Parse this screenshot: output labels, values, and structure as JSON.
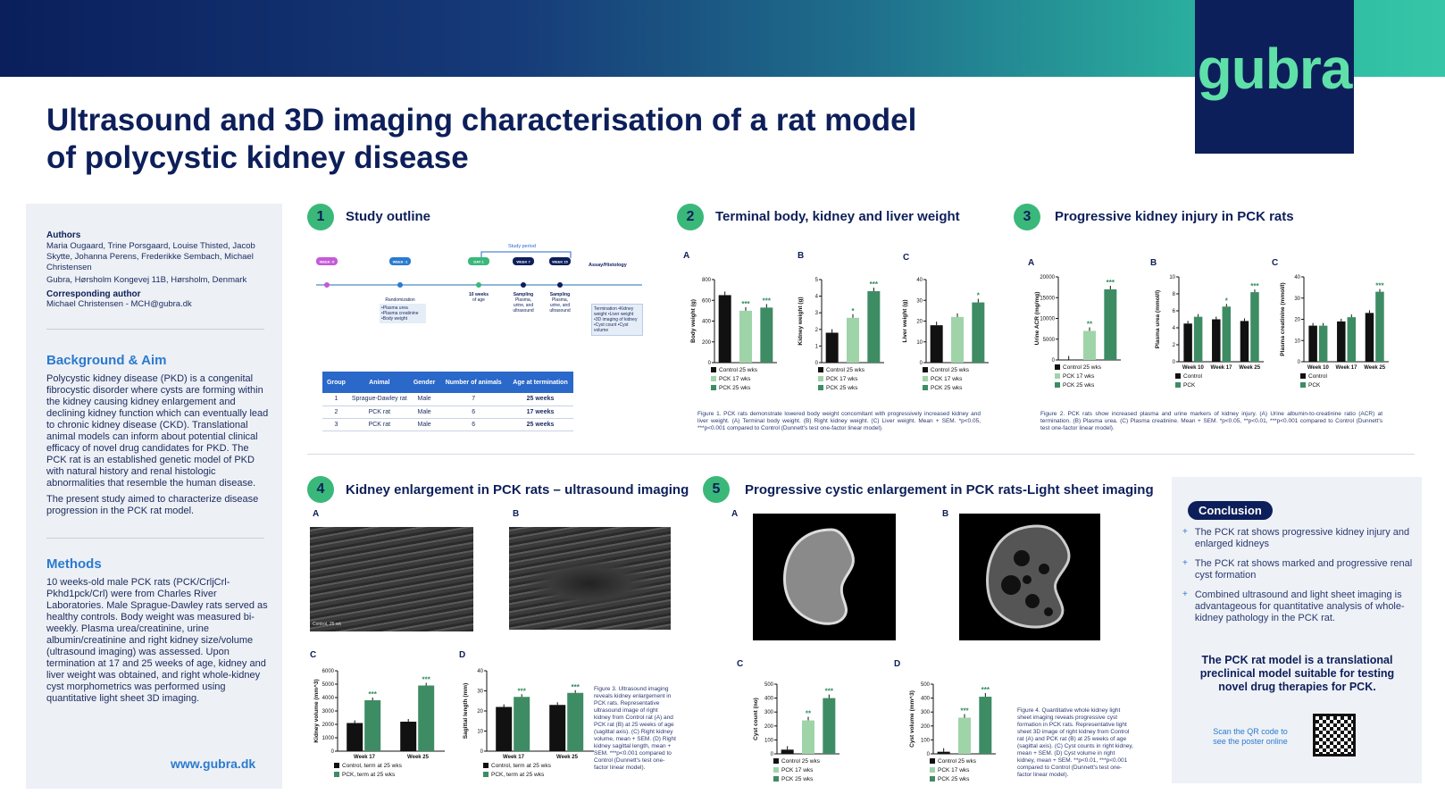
{
  "brand": {
    "logo_text": "gubra",
    "url": "www.gubra.dk"
  },
  "title": "Ultrasound and 3D imaging characterisation of a rat model of polycystic kidney disease",
  "left": {
    "authors_label": "Authors",
    "authors": "Maria Ougaard, Trine Porsgaard, Louise Thisted, Jacob Skytte, Johanna Perens, Frederikke Sembach, Michael Christensen",
    "affiliation": "Gubra, Hørsholm Kongevej 11B, Hørsholm, Denmark",
    "corresponding_label": "Corresponding author",
    "corresponding": "Michael Christensen - MCH@gubra.dk",
    "background_title": "Background & Aim",
    "background_p1": "Polycystic kidney disease (PKD) is a congenital fibrocystic disorder where cysts are forming within the kidney causing kidney enlargement and declining kidney function which can eventually lead to chronic kidney disease (CKD). Translational animal models can inform about potential clinical efficacy of novel drug candidates for PKD. The PCK rat is an established genetic model of PKD with natural history and renal histologic abnormalities that resemble the human disease.",
    "background_p2": "The present study aimed to characterize disease progression in the PCK rat model.",
    "methods_title": "Methods",
    "methods_p": "10 weeks-old male PCK rats (PCK/CrljCrl-Pkhd1pck/Crl) were from Charles River Laboratories. Male Sprague-Dawley rats served as healthy controls. Body weight was measured bi-weekly. Plasma urea/creatinine, urine albumin/creatinine and right kidney size/volume (ultrasound imaging) was assessed. Upon termination at 17 and 25 weeks of age, kidney and liver weight was obtained, and right whole-kidney cyst morphometrics was performed using quantitative light sheet 3D imaging."
  },
  "sections": {
    "s1": {
      "num": "1",
      "title": "Study outline"
    },
    "s2": {
      "num": "2",
      "title": "Terminal body, kidney and liver weight"
    },
    "s3": {
      "num": "3",
      "title": "Progressive kidney injury in PCK rats"
    },
    "s4": {
      "num": "4",
      "title": "Kidney enlargement in PCK rats – ultrasound imaging"
    },
    "s5": {
      "num": "5",
      "title": "Progressive cystic enlargement in PCK rats-Light sheet imaging"
    }
  },
  "timeline": {
    "study_period": "Study period",
    "assay": "Assay/Histology",
    "nodes": [
      "WEEK -5",
      "WEEK -1",
      "DAY 1",
      "WEEK 7",
      "WEEK 15"
    ],
    "labels": [
      "",
      "Randomization",
      "10 weeks of age",
      "Sampling Plasma, urine, and ultrasound",
      "Sampling Plasma, urine, and ultrasound"
    ],
    "rand_box": "•Plasma urea •Plasma creatinine •Body weight",
    "term_box": "Termination •Kidney weight •Liver weight •3D imaging of kidney •Cyst count •Cyst volume"
  },
  "table": {
    "headers": [
      "Group",
      "Animal",
      "Gender",
      "Number of animals",
      "Age at termination"
    ],
    "rows": [
      [
        "1",
        "Sprague-Dawley rat",
        "Male",
        "7",
        "25 weeks"
      ],
      [
        "2",
        "PCK rat",
        "Male",
        "6",
        "17 weeks"
      ],
      [
        "3",
        "PCK rat",
        "Male",
        "6",
        "25 weeks"
      ]
    ]
  },
  "panels": {
    "a": "A",
    "b": "B",
    "c": "C",
    "d": "D"
  },
  "captions": {
    "fig1": "Figure 1. PCK rats demonstrate lowered body weight concomitant with progressively increased kidney and liver weight. (A) Terminal body weight. (B) Right kidney weight. (C) Liver weight. Mean + SEM. *p<0.05, ***p<0.001 compared to Control (Dunnett's test one-factor linear model).",
    "fig2": "Figure 2. PCK rats show increased plasma and urine markers of kidney injury. (A) Urine albumin-to-creatinine ratio (ACR) at termination. (B) Plasma urea. (C) Plasma creatinine. Mean + SEM. *p<0.05, **p<0.01, ***p<0.001 compared to Control (Dunnett's test one-factor linear model).",
    "fig3": "Figure 3. Ultrasound imaging reveals kidney enlargement in PCK rats. Representative ultrasound image of right kidney from Control rat (A) and PCK rat (B) at 25 weeks of age (sagittal axis). (C) Right kidney volume, mean + SEM. (D) Right kidney sagittal length, mean + SEM. ***p<0.001 compared to Control (Dunnett's test one-factor linear model).",
    "fig4": "Figure 4. Quantitative whole kidney light sheet imaging reveals progressive cyst formation in PCK rats. Representative light sheet 3D image of right kidney from Control rat (A) and PCK rat (B) at 25 weeks of age (sagittal axis). (C) Cyst counts in right kidney, mean + SEM. (D) Cyst volume in right kidney, mean + SEM. **p<0.01, ***p<0.001 compared to Control (Dunnett's test one-factor linear model)."
  },
  "conclusion": {
    "badge": "Conclusion",
    "items": [
      "The PCK rat shows progressive kidney injury and enlarged kidneys",
      "The PCK rat shows marked and progressive renal cyst formation",
      "Combined ultrasound and light sheet imaging is advantageous for quantitative analysis of whole-kidney pathology in the PCK rat."
    ],
    "statement": "The PCK rat model is a translational preclinical model suitable for testing novel drug therapies for PCK.",
    "qr_text": "Scan the QR code to see the poster online"
  },
  "ultrasound_label": "Control, 25 wk",
  "colors": {
    "control": "#111111",
    "pck17": "#9fd4a9",
    "pck25": "#3e8c64",
    "pck": "#3e8c64"
  },
  "chart_data": [
    {
      "id": "fig1a",
      "type": "bar",
      "ylabel": "Body weight (g)",
      "ylim": [
        0,
        800
      ],
      "yticks": [
        0,
        200,
        400,
        600,
        800
      ],
      "categories": [
        "Control 25 wks",
        "PCK 17 wks",
        "PCK 25 wks"
      ],
      "values": [
        650,
        500,
        530
      ],
      "stars": [
        "",
        "***",
        "***"
      ],
      "legend": [
        "Control 25 wks",
        "PCK 17 wks",
        "PCK 25 wks"
      ]
    },
    {
      "id": "fig1b",
      "type": "bar",
      "ylabel": "Kidney weight (g)",
      "ylim": [
        0,
        5
      ],
      "yticks": [
        0,
        1,
        2,
        3,
        4,
        5
      ],
      "categories": [
        "Control 25 wks",
        "PCK 17 wks",
        "PCK 25 wks"
      ],
      "values": [
        1.8,
        2.7,
        4.3
      ],
      "stars": [
        "",
        "*",
        "***"
      ],
      "legend": [
        "Control 25 wks",
        "PCK 17 wks",
        "PCK 25 wks"
      ]
    },
    {
      "id": "fig1c",
      "type": "bar",
      "ylabel": "Liver weight (g)",
      "ylim": [
        0,
        40
      ],
      "yticks": [
        0,
        10,
        20,
        30,
        40
      ],
      "categories": [
        "Control 25 wks",
        "PCK 17 wks",
        "PCK 25 wks"
      ],
      "values": [
        18,
        22,
        29
      ],
      "stars": [
        "",
        "",
        "*"
      ],
      "legend": [
        "Control 25 wks",
        "PCK 17 wks",
        "PCK 25 wks"
      ]
    },
    {
      "id": "fig2a",
      "type": "bar",
      "ylabel": "Urine ACR (mg/mg)",
      "ylim": [
        0,
        20000
      ],
      "yticks": [
        0,
        5000,
        10000,
        15000,
        20000
      ],
      "categories": [
        "Control 25 wks",
        "PCK 17 wks",
        "PCK 25 wks"
      ],
      "values": [
        100,
        7000,
        17000
      ],
      "stars": [
        "",
        "**",
        "***"
      ],
      "legend": [
        "Control 25 wks",
        "PCK 17 wks",
        "PCK 25 wks"
      ]
    },
    {
      "id": "fig2b",
      "type": "bar",
      "ylabel": "Plasma urea (mmol/l)",
      "ylim": [
        0,
        10
      ],
      "yticks": [
        0,
        2,
        4,
        6,
        8,
        10
      ],
      "categories": [
        "Week 10",
        "Week 17",
        "Week 25"
      ],
      "series": [
        {
          "name": "Control",
          "values": [
            4.5,
            5.0,
            4.8
          ]
        },
        {
          "name": "PCK",
          "values": [
            5.3,
            6.5,
            8.2
          ]
        }
      ],
      "stars": [
        "",
        "*",
        "***"
      ],
      "legend": [
        "Control",
        "PCK"
      ]
    },
    {
      "id": "fig2c",
      "type": "bar",
      "ylabel": "Plasma creatinine (mmol/l)",
      "ylim": [
        0,
        40
      ],
      "yticks": [
        0,
        10,
        20,
        30,
        40
      ],
      "categories": [
        "Week 10",
        "Week 17",
        "Week 25"
      ],
      "series": [
        {
          "name": "Control",
          "values": [
            17,
            19,
            23
          ]
        },
        {
          "name": "PCK",
          "values": [
            17,
            21,
            33
          ]
        }
      ],
      "stars": [
        "",
        "",
        "***"
      ],
      "legend": [
        "Control",
        "PCK"
      ]
    },
    {
      "id": "fig3c",
      "type": "bar",
      "ylabel": "Kidney volume (mm^3)",
      "ylim": [
        0,
        6000
      ],
      "yticks": [
        0,
        1000,
        2000,
        3000,
        4000,
        5000,
        6000
      ],
      "categories": [
        "Week 17",
        "Week 25"
      ],
      "series": [
        {
          "name": "Control, term at 25 wks",
          "values": [
            2100,
            2200
          ]
        },
        {
          "name": "PCK, term at 25 wks",
          "values": [
            3800,
            4900
          ]
        }
      ],
      "stars": [
        "***",
        "***"
      ],
      "legend": [
        "Control, term at 25 wks",
        "PCK, term at 25 wks"
      ]
    },
    {
      "id": "fig3d",
      "type": "bar",
      "ylabel": "Sagittal length (mm)",
      "ylim": [
        0,
        40
      ],
      "yticks": [
        0,
        10,
        20,
        30,
        40
      ],
      "categories": [
        "Week 17",
        "Week 25"
      ],
      "series": [
        {
          "name": "Control, term at 25 wks",
          "values": [
            22,
            23
          ]
        },
        {
          "name": "PCK, term at 25 wks",
          "values": [
            27,
            29
          ]
        }
      ],
      "stars": [
        "***",
        "***"
      ],
      "legend": [
        "Control, term at 25 wks",
        "PCK, term at 25 wks"
      ]
    },
    {
      "id": "fig4c",
      "type": "bar",
      "ylabel": "Cyst count (no)",
      "ylim": [
        0,
        500
      ],
      "yticks": [
        0,
        100,
        200,
        300,
        400,
        500
      ],
      "categories": [
        "Control 25 wks",
        "PCK 17 wks",
        "PCK 25 wks"
      ],
      "values": [
        30,
        240,
        400
      ],
      "stars": [
        "",
        "**",
        "***"
      ],
      "legend": [
        "Control 25 wks",
        "PCK 17 wks",
        "PCK 25 wks"
      ]
    },
    {
      "id": "fig4d",
      "type": "bar",
      "ylabel": "Cyst volume (mm^3)",
      "ylim": [
        0,
        500
      ],
      "yticks": [
        0,
        100,
        200,
        300,
        400,
        500
      ],
      "categories": [
        "Control 25 wks",
        "PCK 17 wks",
        "PCK 25 wks"
      ],
      "values": [
        15,
        260,
        410
      ],
      "stars": [
        "",
        "***",
        "***"
      ],
      "legend": [
        "Control 25 wks",
        "PCK 17 wks",
        "PCK 25 wks"
      ]
    }
  ]
}
